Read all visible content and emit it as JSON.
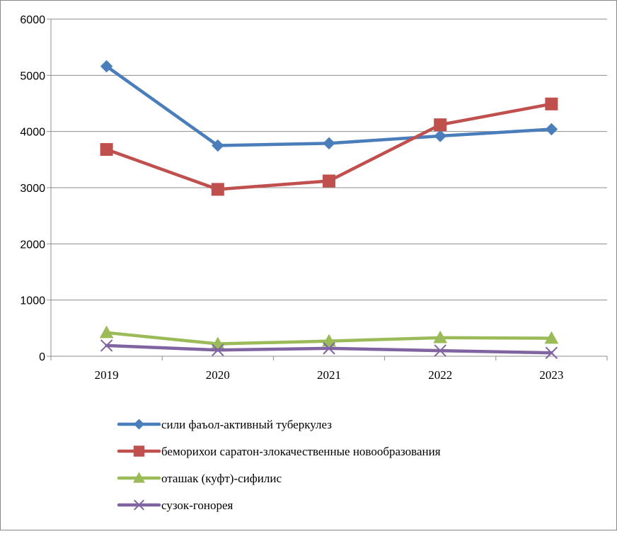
{
  "chart_data": {
    "type": "line",
    "title": "",
    "xlabel": "",
    "ylabel": "",
    "ylim": [
      0,
      6000
    ],
    "y_ticks": [
      "0",
      "1000",
      "2000",
      "3000",
      "4000",
      "5000",
      "6000"
    ],
    "categories": [
      "2019",
      "2020",
      "2021",
      "2022",
      "2023"
    ],
    "grid": "horizontal",
    "legend_position": "bottom",
    "series": [
      {
        "name": "сили фаъол-активный туберкулез",
        "values": [
          5160,
          3750,
          3790,
          3920,
          4040
        ],
        "color": "#4a7ebb",
        "marker": "diamond"
      },
      {
        "name": "беморихои саратон-злокачественные новообразования",
        "values": [
          3680,
          2970,
          3120,
          4120,
          4490
        ],
        "color": "#c0504d",
        "marker": "square"
      },
      {
        "name": "оташак (куфт)-сифилис",
        "values": [
          420,
          220,
          270,
          330,
          320
        ],
        "color": "#9bbb59",
        "marker": "triangle"
      },
      {
        "name": "сузок-гонорея",
        "values": [
          190,
          110,
          140,
          100,
          60
        ],
        "color": "#8064a2",
        "marker": "x"
      }
    ]
  }
}
